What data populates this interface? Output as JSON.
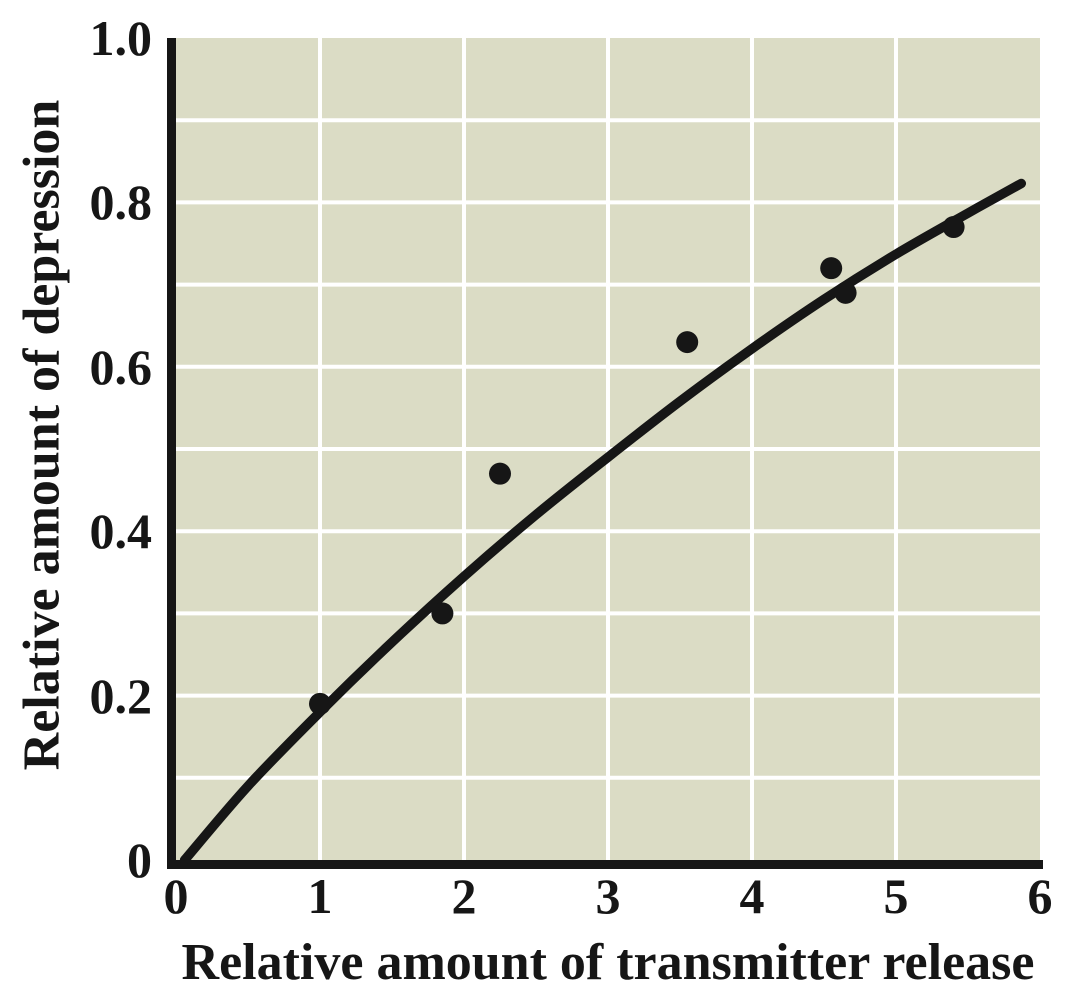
{
  "chart_data": {
    "type": "scatter",
    "title": "",
    "xlabel": "Relative amount of transmitter release",
    "ylabel": "Relative amount of depression",
    "xlim": [
      0,
      6
    ],
    "ylim": [
      0,
      1.0
    ],
    "x_ticks": [
      0,
      1,
      2,
      3,
      4,
      5,
      6
    ],
    "x_tick_labels": [
      "0",
      "1",
      "2",
      "3",
      "4",
      "5",
      "6"
    ],
    "y_ticks": [
      0,
      0.2,
      0.4,
      0.6,
      0.8,
      1.0
    ],
    "y_tick_labels": [
      "0",
      "0.2",
      "0.4",
      "0.6",
      "0.8",
      "1.0"
    ],
    "grid": true,
    "x_gridlines": [
      1,
      2,
      3,
      4,
      5
    ],
    "y_gridlines": [
      0.1,
      0.2,
      0.3,
      0.4,
      0.5,
      0.6,
      0.7,
      0.8,
      0.9
    ],
    "legend": "none",
    "colors": {
      "plot_background": "#dbdcc5",
      "gridline": "#ffffff",
      "axis": "#161616",
      "point": "#161616",
      "curve": "#161616",
      "text": "#161616"
    },
    "points": [
      {
        "x": 1.0,
        "y": 0.19
      },
      {
        "x": 1.85,
        "y": 0.3
      },
      {
        "x": 2.25,
        "y": 0.47
      },
      {
        "x": 3.55,
        "y": 0.63
      },
      {
        "x": 4.55,
        "y": 0.72
      },
      {
        "x": 4.65,
        "y": 0.69
      },
      {
        "x": 5.4,
        "y": 0.77
      }
    ],
    "fit_curve": {
      "description": "smooth saturating fit through the data points",
      "points": [
        {
          "x": 0.06,
          "y": 0.0
        },
        {
          "x": 0.5,
          "y": 0.09
        },
        {
          "x": 1.0,
          "y": 0.18
        },
        {
          "x": 1.5,
          "y": 0.265
        },
        {
          "x": 2.0,
          "y": 0.345
        },
        {
          "x": 2.5,
          "y": 0.42
        },
        {
          "x": 3.0,
          "y": 0.49
        },
        {
          "x": 3.5,
          "y": 0.558
        },
        {
          "x": 4.0,
          "y": 0.622
        },
        {
          "x": 4.5,
          "y": 0.682
        },
        {
          "x": 5.0,
          "y": 0.737
        },
        {
          "x": 5.5,
          "y": 0.787
        },
        {
          "x": 5.87,
          "y": 0.823
        }
      ]
    }
  }
}
